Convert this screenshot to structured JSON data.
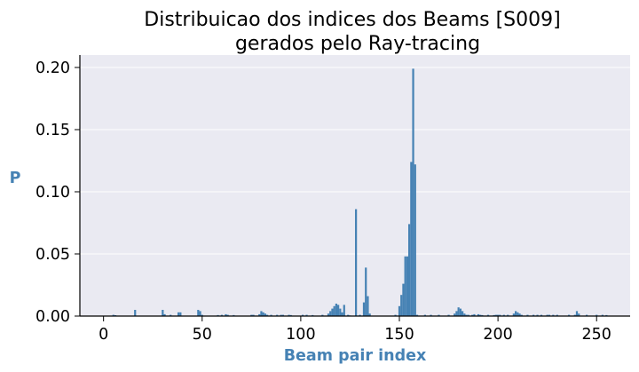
{
  "chart_data": {
    "type": "bar",
    "title_lines": [
      "Distribuicao dos indices dos Beams [S009]",
      "gerados pelo Ray-tracing"
    ],
    "xlabel": "Beam pair index",
    "ylabel": "P",
    "xlim": [
      -12,
      267
    ],
    "ylim": [
      0,
      0.21
    ],
    "xticks": [
      0,
      50,
      100,
      150,
      200,
      250
    ],
    "xtick_labels": [
      "0",
      "50",
      "100",
      "150",
      "200",
      "250"
    ],
    "yticks": [
      0.0,
      0.05,
      0.1,
      0.15,
      0.2
    ],
    "ytick_labels": [
      "0.00",
      "0.05",
      "0.10",
      "0.15",
      "0.20"
    ],
    "grid": "horizontal",
    "colors": {
      "bar": "#4682b4",
      "axis_label": "#4682b4",
      "plot_background": "#eaeaf2",
      "grid": "#ffffff"
    },
    "x": [
      5,
      6,
      16,
      30,
      31,
      34,
      38,
      39,
      48,
      49,
      50,
      58,
      60,
      62,
      63,
      66,
      75,
      76,
      79,
      80,
      81,
      82,
      83,
      85,
      88,
      90,
      91,
      94,
      95,
      101,
      103,
      106,
      111,
      114,
      115,
      116,
      117,
      118,
      119,
      120,
      121,
      122,
      124,
      125,
      128,
      130,
      132,
      133,
      134,
      135,
      148,
      150,
      151,
      152,
      153,
      154,
      155,
      156,
      157,
      158,
      159,
      163,
      166,
      170,
      175,
      178,
      179,
      180,
      181,
      182,
      183,
      184,
      185,
      187,
      188,
      190,
      191,
      192,
      195,
      198,
      199,
      200,
      201,
      203,
      205,
      208,
      209,
      210,
      211,
      212,
      215,
      218,
      220,
      222,
      225,
      226,
      228,
      230,
      236,
      239,
      240,
      241,
      245,
      250,
      253,
      255
    ],
    "values": [
      0.001,
      0.0007,
      0.005,
      0.005,
      0.0015,
      0.001,
      0.003,
      0.003,
      0.005,
      0.004,
      0.001,
      0.0008,
      0.001,
      0.0015,
      0.001,
      0.0008,
      0.001,
      0.001,
      0.0015,
      0.004,
      0.003,
      0.002,
      0.001,
      0.001,
      0.001,
      0.001,
      0.001,
      0.001,
      0.0008,
      0.001,
      0.001,
      0.0008,
      0.001,
      0.002,
      0.004,
      0.006,
      0.008,
      0.01,
      0.009,
      0.006,
      0.003,
      0.009,
      0.001,
      0.0005,
      0.086,
      0.001,
      0.011,
      0.039,
      0.016,
      0.002,
      0.001,
      0.008,
      0.017,
      0.026,
      0.048,
      0.048,
      0.074,
      0.124,
      0.199,
      0.122,
      0.001,
      0.001,
      0.001,
      0.001,
      0.001,
      0.002,
      0.004,
      0.007,
      0.006,
      0.004,
      0.002,
      0.001,
      0.001,
      0.001,
      0.0015,
      0.0015,
      0.001,
      0.0008,
      0.001,
      0.0008,
      0.001,
      0.001,
      0.001,
      0.001,
      0.001,
      0.002,
      0.004,
      0.003,
      0.002,
      0.001,
      0.001,
      0.001,
      0.001,
      0.001,
      0.001,
      0.001,
      0.001,
      0.001,
      0.001,
      0.001,
      0.004,
      0.002,
      0.001,
      0.001,
      0.001,
      0.0008
    ]
  }
}
